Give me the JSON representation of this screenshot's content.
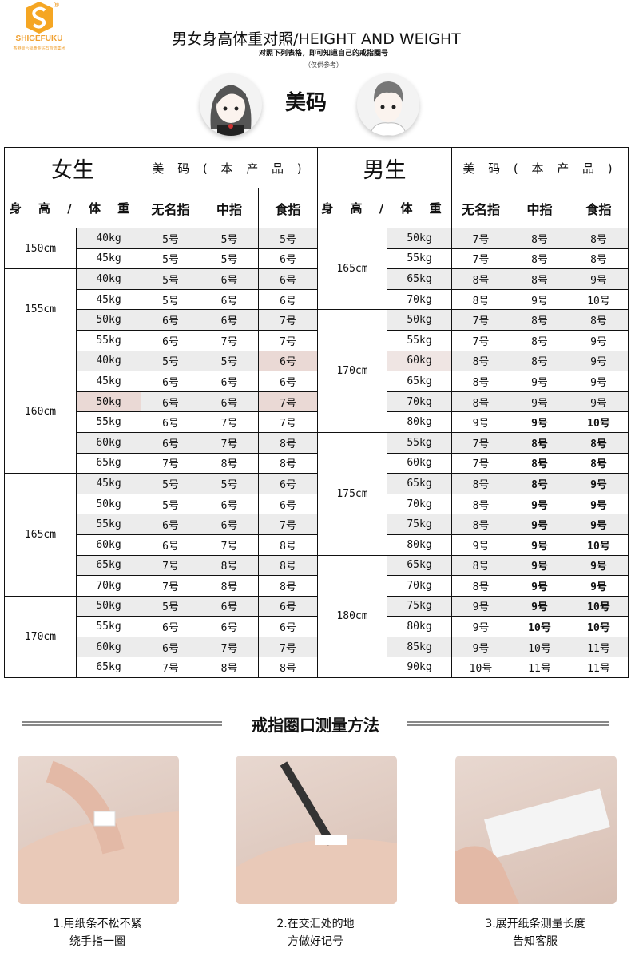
{
  "logo": {
    "brand": "SHIGEFUKU",
    "registered": "®",
    "tagline": "香港周六福黄金钻石首饰集团"
  },
  "header": {
    "title": "男女身高体重对照/HEIGHT AND WEIGHT",
    "subtitle": "对照下列表格，即可知道自己的戒指圈号",
    "note": "（仅供参考）",
    "center_label": "美码"
  },
  "table": {
    "women_label": "女生",
    "men_label": "男生",
    "size_label": "美 码 ( 本 产 品 )",
    "col_height_weight": "身 高 / 体 重",
    "col_ring": "无名指",
    "col_middle": "中指",
    "col_index": "食指",
    "women": [
      {
        "height": "150cm",
        "rows": [
          [
            "40kg",
            "5号",
            "5号",
            "5号"
          ],
          [
            "45kg",
            "5号",
            "5号",
            "6号"
          ]
        ]
      },
      {
        "height": "155cm",
        "rows": [
          [
            "40kg",
            "5号",
            "6号",
            "6号"
          ],
          [
            "45kg",
            "5号",
            "6号",
            "6号"
          ],
          [
            "50kg",
            "6号",
            "6号",
            "7号"
          ],
          [
            "55kg",
            "6号",
            "7号",
            "7号"
          ]
        ]
      },
      {
        "height": "160cm",
        "rows": [
          [
            "40kg",
            "5号",
            "5号",
            "6号"
          ],
          [
            "45kg",
            "6号",
            "6号",
            "6号"
          ],
          [
            "50kg",
            "6号",
            "6号",
            "7号"
          ],
          [
            "55kg",
            "6号",
            "7号",
            "7号"
          ],
          [
            "60kg",
            "6号",
            "7号",
            "8号"
          ],
          [
            "65kg",
            "7号",
            "8号",
            "8号"
          ]
        ]
      },
      {
        "height": "165cm",
        "rows": [
          [
            "45kg",
            "5号",
            "5号",
            "6号"
          ],
          [
            "50kg",
            "5号",
            "6号",
            "6号"
          ],
          [
            "55kg",
            "6号",
            "6号",
            "7号"
          ],
          [
            "60kg",
            "6号",
            "7号",
            "8号"
          ],
          [
            "65kg",
            "7号",
            "8号",
            "8号"
          ],
          [
            "70kg",
            "7号",
            "8号",
            "8号"
          ]
        ]
      },
      {
        "height": "170cm",
        "rows": [
          [
            "50kg",
            "5号",
            "6号",
            "6号"
          ],
          [
            "55kg",
            "6号",
            "6号",
            "6号"
          ],
          [
            "60kg",
            "6号",
            "7号",
            "7号"
          ],
          [
            "65kg",
            "7号",
            "8号",
            "8号"
          ]
        ]
      }
    ],
    "men": [
      {
        "height": "165cm",
        "rows": [
          [
            "50kg",
            "7号",
            "8号",
            "8号"
          ],
          [
            "55kg",
            "7号",
            "8号",
            "8号"
          ],
          [
            "65kg",
            "8号",
            "8号",
            "9号"
          ],
          [
            "70kg",
            "8号",
            "9号",
            "10号"
          ]
        ]
      },
      {
        "height": "170cm",
        "rows": [
          [
            "50kg",
            "7号",
            "8号",
            "8号"
          ],
          [
            "55kg",
            "7号",
            "8号",
            "9号"
          ],
          [
            "60kg",
            "8号",
            "8号",
            "9号"
          ],
          [
            "65kg",
            "8号",
            "9号",
            "9号"
          ],
          [
            "70kg",
            "8号",
            "9号",
            "9号"
          ],
          [
            "80kg",
            "9号",
            "9号",
            "10号"
          ]
        ]
      },
      {
        "height": "175cm",
        "rows": [
          [
            "55kg",
            "7号",
            "8号",
            "8号"
          ],
          [
            "60kg",
            "7号",
            "8号",
            "8号"
          ],
          [
            "65kg",
            "8号",
            "8号",
            "9号"
          ],
          [
            "70kg",
            "8号",
            "9号",
            "9号"
          ],
          [
            "75kg",
            "8号",
            "9号",
            "9号"
          ],
          [
            "80kg",
            "9号",
            "9号",
            "10号"
          ]
        ]
      },
      {
        "height": "180cm",
        "rows": [
          [
            "65kg",
            "8号",
            "9号",
            "9号"
          ],
          [
            "70kg",
            "8号",
            "9号",
            "9号"
          ],
          [
            "75kg",
            "9号",
            "9号",
            "10号"
          ],
          [
            "80kg",
            "9号",
            "10号",
            "10号"
          ],
          [
            "85kg",
            "9号",
            "10号",
            "11号"
          ],
          [
            "90kg",
            "10号",
            "11号",
            "11号"
          ]
        ]
      }
    ]
  },
  "method": {
    "title": "戒指圈口测量方法",
    "steps": [
      {
        "line1": "1.用纸条不松不紧",
        "line2": "绕手指一圈"
      },
      {
        "line1": "2.在交汇处的地",
        "line2": "方做好记号"
      },
      {
        "line1": "3.展开纸条测量长度",
        "line2": "告知客服"
      }
    ]
  },
  "colors": {
    "accent": "#f0a030",
    "row_alt": "#ececec",
    "highlight": "#ead9d5"
  }
}
